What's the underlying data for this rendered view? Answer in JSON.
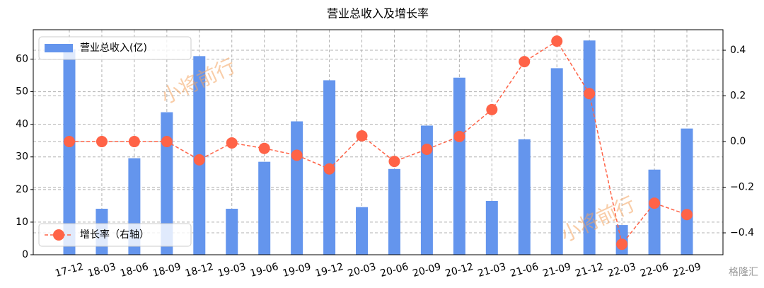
{
  "chart_data": {
    "type": "bar-line",
    "title": "营业总收入及增长率",
    "categories": [
      "17-12",
      "18-03",
      "18-06",
      "18-09",
      "18-12",
      "19-03",
      "19-06",
      "19-09",
      "19-12",
      "20-03",
      "20-06",
      "20-09",
      "20-12",
      "21-03",
      "21-06",
      "21-09",
      "21-12",
      "22-03",
      "22-06",
      "22-09"
    ],
    "series": [
      {
        "name": "营业总收入(亿)",
        "color": "#6495ed",
        "values": [
          63,
          14.1,
          29.6,
          43.7,
          60.9,
          14.1,
          28.5,
          40.9,
          53.5,
          14.6,
          26.3,
          39.6,
          54.3,
          16.5,
          35.4,
          57.2,
          65.7,
          9.1,
          26.1,
          38.7
        ]
      },
      {
        "name": "增长率（右轴）",
        "color": "#ff6347",
        "axis": "y2",
        "values": [
          0,
          0,
          0,
          0,
          -0.08,
          -0.006,
          -0.03,
          -0.06,
          -0.12,
          0.025,
          -0.087,
          -0.034,
          0.022,
          0.14,
          0.35,
          0.44,
          0.21,
          -0.45,
          -0.27,
          -0.32
        ]
      }
    ],
    "ylim": [
      0,
      69
    ],
    "yticks": [
      0,
      10,
      20,
      30,
      40,
      50,
      60
    ],
    "y2lim": [
      -0.496,
      0.49
    ],
    "y2ticks": [
      {
        "value": -0.4,
        "label": "−0.4"
      },
      {
        "value": -0.2,
        "label": "−0.2"
      },
      {
        "value": 0,
        "label": "0.0"
      },
      0.2,
      0.4
    ],
    "grid": true,
    "watermarks": [
      "小将前行",
      "小将前行"
    ],
    "logo": "格隆汇"
  }
}
